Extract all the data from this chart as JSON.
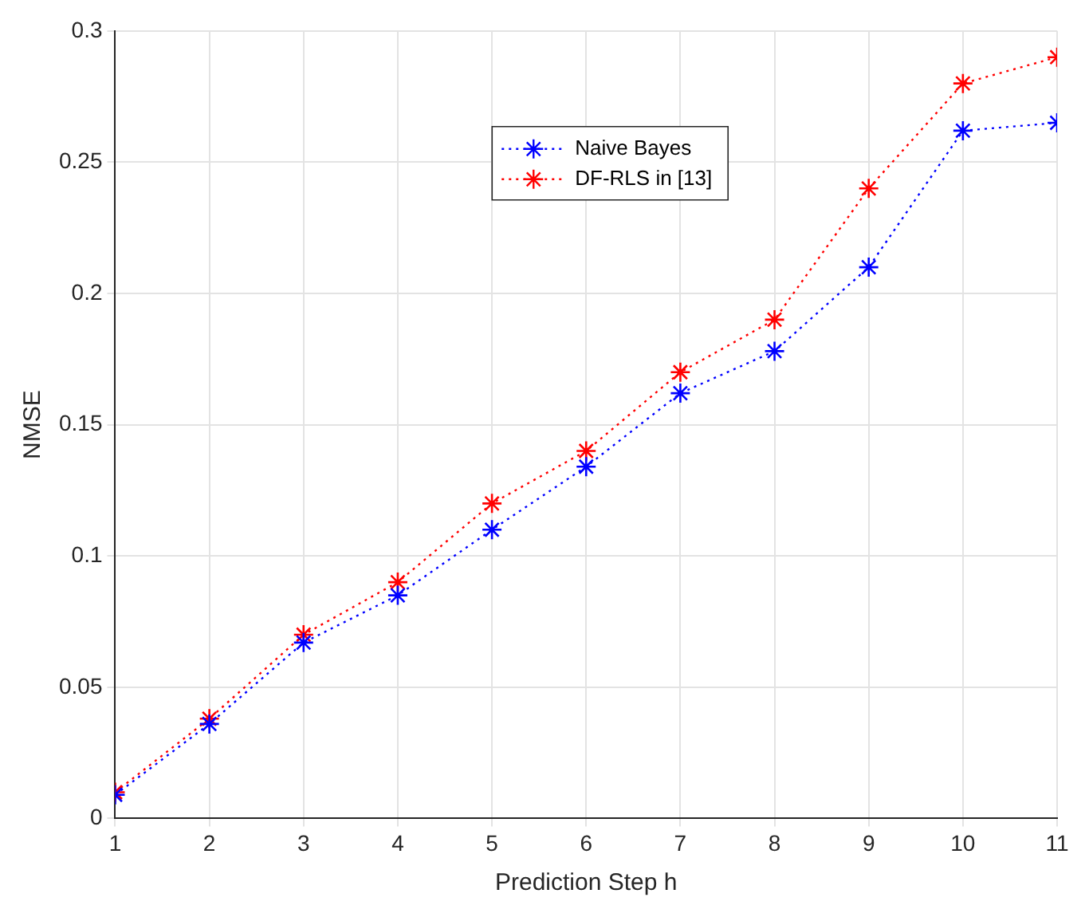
{
  "chart_data": {
    "type": "line",
    "xlabel": "Prediction Step h",
    "ylabel": "NMSE",
    "x": [
      1,
      2,
      3,
      4,
      5,
      6,
      7,
      8,
      9,
      10,
      11
    ],
    "series": [
      {
        "name": "Naive Bayes",
        "color": "#0000ff",
        "values": [
          0.009,
          0.036,
          0.067,
          0.085,
          0.11,
          0.134,
          0.162,
          0.178,
          0.21,
          0.262,
          0.265
        ]
      },
      {
        "name": "DF-RLS in [13]",
        "color": "#ff0000",
        "values": [
          0.01,
          0.038,
          0.07,
          0.09,
          0.12,
          0.14,
          0.17,
          0.19,
          0.24,
          0.28,
          0.29
        ]
      }
    ],
    "xlim": [
      1,
      11
    ],
    "xticks": [
      1,
      2,
      3,
      4,
      5,
      6,
      7,
      8,
      9,
      10,
      11
    ],
    "ylim": [
      0,
      0.3
    ],
    "yticks": [
      0,
      0.05,
      0.1,
      0.15,
      0.2,
      0.25,
      0.3
    ],
    "grid": true,
    "legend": "top",
    "marker": "cross",
    "line_style": "dotted"
  }
}
